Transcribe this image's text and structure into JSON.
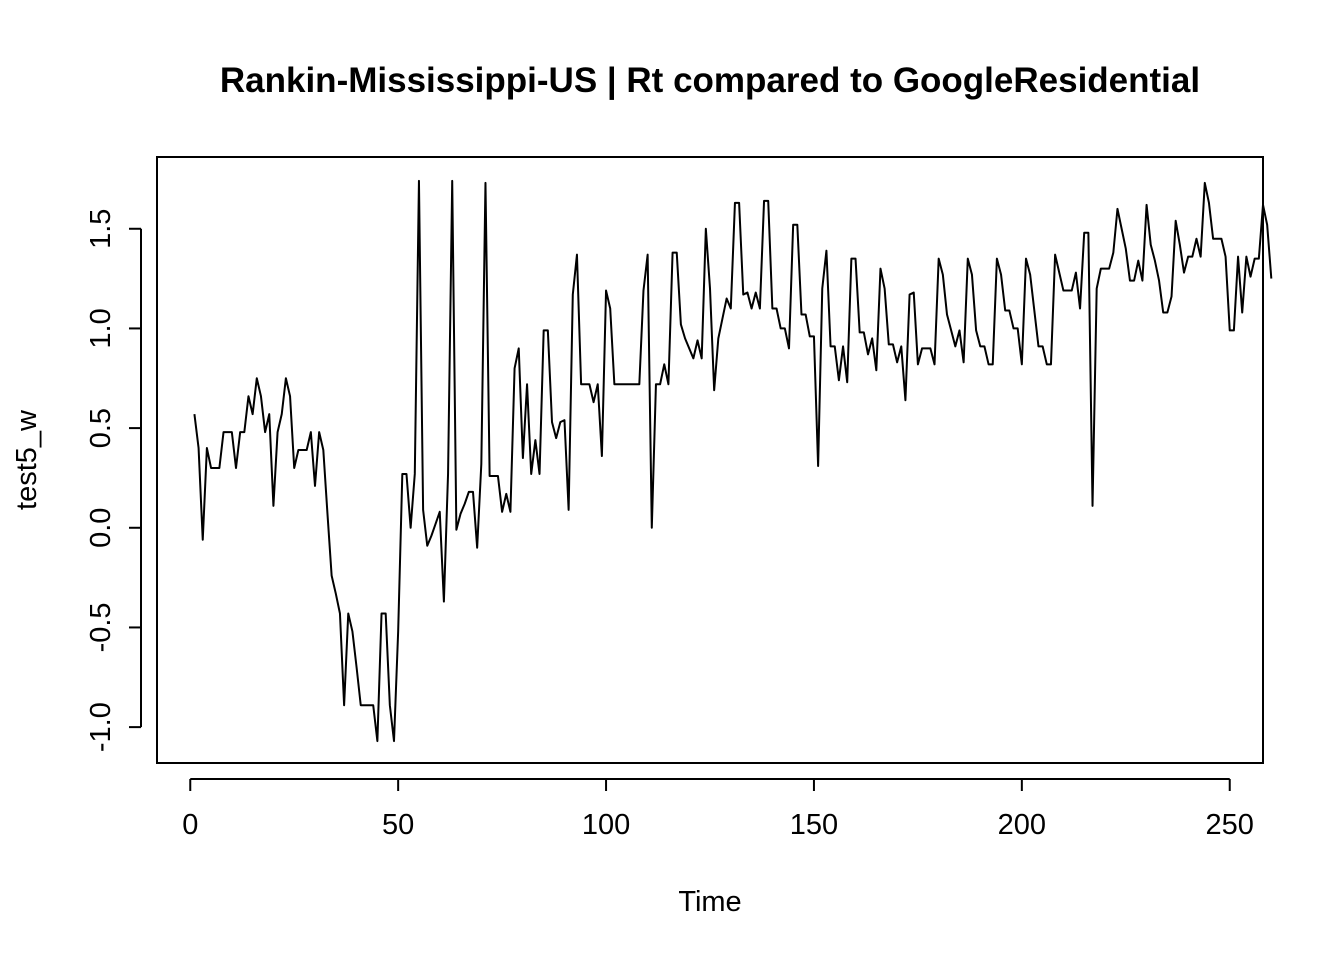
{
  "chart_data": {
    "type": "line",
    "title": "Rankin-Mississippi-US | Rt compared to GoogleResidential",
    "xlabel": "Time",
    "ylabel": "test5_w",
    "xlim": [
      -8,
      258
    ],
    "ylim": [
      -1.18,
      1.86
    ],
    "xticks": [
      0,
      50,
      100,
      150,
      200,
      250
    ],
    "xtick_labels": [
      "0",
      "50",
      "100",
      "150",
      "200",
      "250"
    ],
    "yticks": [
      -1.0,
      -0.5,
      0.0,
      0.5,
      1.0,
      1.5
    ],
    "ytick_labels": [
      "-1.0",
      "-0.5",
      "0.0",
      "0.5",
      "1.0",
      "1.5"
    ],
    "grid": false,
    "legend": "none",
    "line_color": "#000000",
    "series": [
      {
        "x_start": 1,
        "values": [
          0.57,
          0.4,
          -0.06,
          0.4,
          0.3,
          0.3,
          0.3,
          0.48,
          0.48,
          0.48,
          0.3,
          0.48,
          0.48,
          0.66,
          0.57,
          0.75,
          0.66,
          0.48,
          0.57,
          0.11,
          0.48,
          0.57,
          0.75,
          0.66,
          0.3,
          0.39,
          0.39,
          0.39,
          0.48,
          0.21,
          0.48,
          0.39,
          0.07,
          -0.24,
          -0.33,
          -0.43,
          -0.89,
          -0.43,
          -0.52,
          -0.7,
          -0.89,
          -0.89,
          -0.89,
          -0.89,
          -1.07,
          -0.43,
          -0.43,
          -0.89,
          -1.07,
          -0.52,
          0.27,
          0.27,
          0.0,
          0.27,
          1.74,
          0.09,
          -0.09,
          -0.04,
          0.02,
          0.08,
          -0.37,
          0.27,
          1.74,
          -0.01,
          0.07,
          0.12,
          0.18,
          0.18,
          -0.1,
          0.32,
          1.73,
          0.26,
          0.26,
          0.26,
          0.08,
          0.17,
          0.08,
          0.8,
          0.9,
          0.35,
          0.72,
          0.27,
          0.44,
          0.27,
          0.99,
          0.99,
          0.53,
          0.45,
          0.53,
          0.54,
          0.09,
          1.17,
          1.37,
          0.72,
          0.72,
          0.72,
          0.63,
          0.72,
          0.36,
          1.19,
          1.1,
          0.72,
          0.72,
          0.72,
          0.72,
          0.72,
          0.72,
          0.72,
          1.19,
          1.37,
          0.0,
          0.72,
          0.72,
          0.82,
          0.72,
          1.38,
          1.38,
          1.02,
          0.95,
          0.9,
          0.85,
          0.94,
          0.85,
          1.5,
          1.2,
          0.69,
          0.95,
          1.05,
          1.15,
          1.1,
          1.63,
          1.63,
          1.17,
          1.18,
          1.1,
          1.18,
          1.1,
          1.64,
          1.64,
          1.1,
          1.1,
          1.0,
          1.0,
          0.9,
          1.52,
          1.52,
          1.07,
          1.07,
          0.96,
          0.96,
          0.31,
          1.2,
          1.39,
          0.91,
          0.91,
          0.74,
          0.91,
          0.73,
          1.35,
          1.35,
          0.98,
          0.98,
          0.87,
          0.95,
          0.79,
          1.3,
          1.2,
          0.92,
          0.92,
          0.83,
          0.91,
          0.64,
          1.17,
          1.18,
          0.82,
          0.9,
          0.9,
          0.9,
          0.82,
          1.35,
          1.27,
          1.07,
          0.99,
          0.91,
          0.99,
          0.83,
          1.35,
          1.27,
          0.99,
          0.91,
          0.91,
          0.82,
          0.82,
          1.35,
          1.27,
          1.09,
          1.09,
          1.0,
          1.0,
          0.82,
          1.35,
          1.27,
          1.09,
          0.91,
          0.91,
          0.82,
          0.82,
          1.37,
          1.28,
          1.19,
          1.19,
          1.19,
          1.28,
          1.1,
          1.48,
          1.48,
          0.11,
          1.2,
          1.3,
          1.3,
          1.3,
          1.38,
          1.6,
          1.5,
          1.4,
          1.24,
          1.24,
          1.34,
          1.24,
          1.62,
          1.42,
          1.34,
          1.24,
          1.08,
          1.08,
          1.16,
          1.54,
          1.42,
          1.28,
          1.36,
          1.36,
          1.45,
          1.36,
          1.73,
          1.63,
          1.45,
          1.45,
          1.45,
          1.36,
          0.99,
          0.99,
          1.36,
          1.08,
          1.36,
          1.26,
          1.35,
          1.35,
          1.62,
          1.52,
          1.25
        ]
      }
    ]
  }
}
